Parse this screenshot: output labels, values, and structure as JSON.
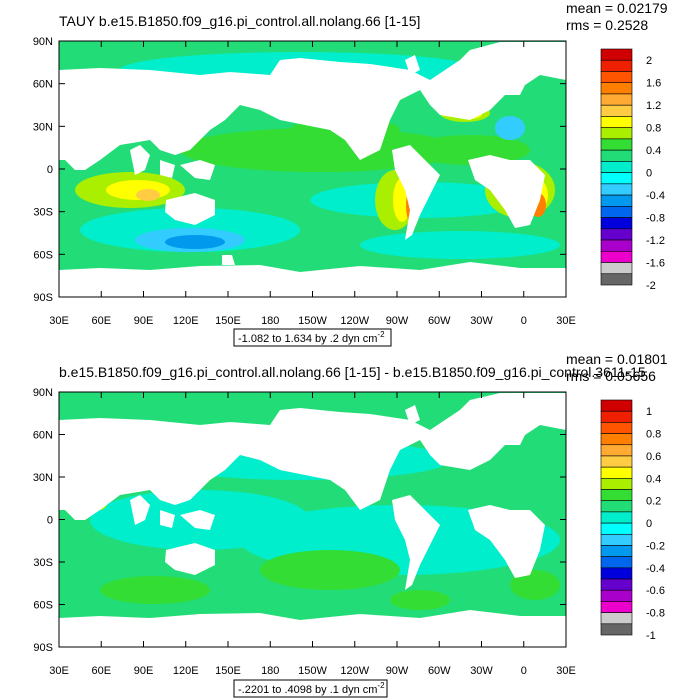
{
  "chart_data": [
    {
      "type": "heatmap",
      "title": "TAUY b.e15.B1850.f09_g16.pi_control.all.nolang.66 [1-15]",
      "stats": [
        "mean = 0.02179",
        "rms = 0.2528"
      ],
      "x_ticks": [
        "30E",
        "60E",
        "90E",
        "120E",
        "150E",
        "180",
        "150W",
        "120W",
        "90W",
        "60W",
        "30W",
        "0",
        "30E"
      ],
      "y_ticks": [
        "90N",
        "60N",
        "30N",
        "0",
        "30S",
        "60S",
        "90S"
      ],
      "xlim": [
        30,
        390
      ],
      "ylim": [
        -90,
        90
      ],
      "range_label": "-1.082 to 1.634 by .2 dyn cm",
      "range_exp": "-2",
      "colorbar_labels": [
        "2",
        "1.6",
        "1.2",
        "0.8",
        "0.4",
        "0",
        "-0.4",
        "-0.8",
        "-1.2",
        "-1.6",
        "-2"
      ],
      "colors": [
        "#d00000",
        "#ee2000",
        "#ff5500",
        "#ff8000",
        "#ffaa33",
        "#ffcc44",
        "#ffff00",
        "#aaee00",
        "#33dd33",
        "#22dd77",
        "#00eecc",
        "#00ffff",
        "#33ccff",
        "#0099ee",
        "#0066ee",
        "#0000dd",
        "#6600cc",
        "#aa00cc",
        "#ee00cc",
        "#cccccc",
        "#666666"
      ]
    },
    {
      "type": "heatmap",
      "title": "b.e15.B1850.f09_g16.pi_control.all.nolang.66 [1-15] - b.e15.B1850.f09_g16.pi_control.3611-15",
      "stats": [
        "mean = 0.01801",
        "rms = 0.05656"
      ],
      "x_ticks": [
        "30E",
        "60E",
        "90E",
        "120E",
        "150E",
        "180",
        "150W",
        "120W",
        "90W",
        "60W",
        "30W",
        "0",
        "30E"
      ],
      "y_ticks": [
        "90N",
        "60N",
        "30N",
        "0",
        "30S",
        "60S",
        "90S"
      ],
      "xlim": [
        30,
        390
      ],
      "ylim": [
        -90,
        90
      ],
      "range_label": "-.2201 to .4098 by .1 dyn cm",
      "range_exp": "-2",
      "colorbar_labels": [
        "1",
        "0.8",
        "0.6",
        "0.4",
        "0.2",
        "0",
        "-0.2",
        "-0.4",
        "-0.6",
        "-0.8",
        "-1"
      ],
      "colors": [
        "#d00000",
        "#ee2000",
        "#ff5500",
        "#ff8000",
        "#ffaa33",
        "#ffcc44",
        "#ffff00",
        "#aaee00",
        "#33dd33",
        "#22dd77",
        "#00eecc",
        "#00ffff",
        "#33ccff",
        "#0099ee",
        "#0066ee",
        "#0000dd",
        "#6600cc",
        "#aa00cc",
        "#ee00cc",
        "#cccccc",
        "#666666"
      ]
    }
  ]
}
